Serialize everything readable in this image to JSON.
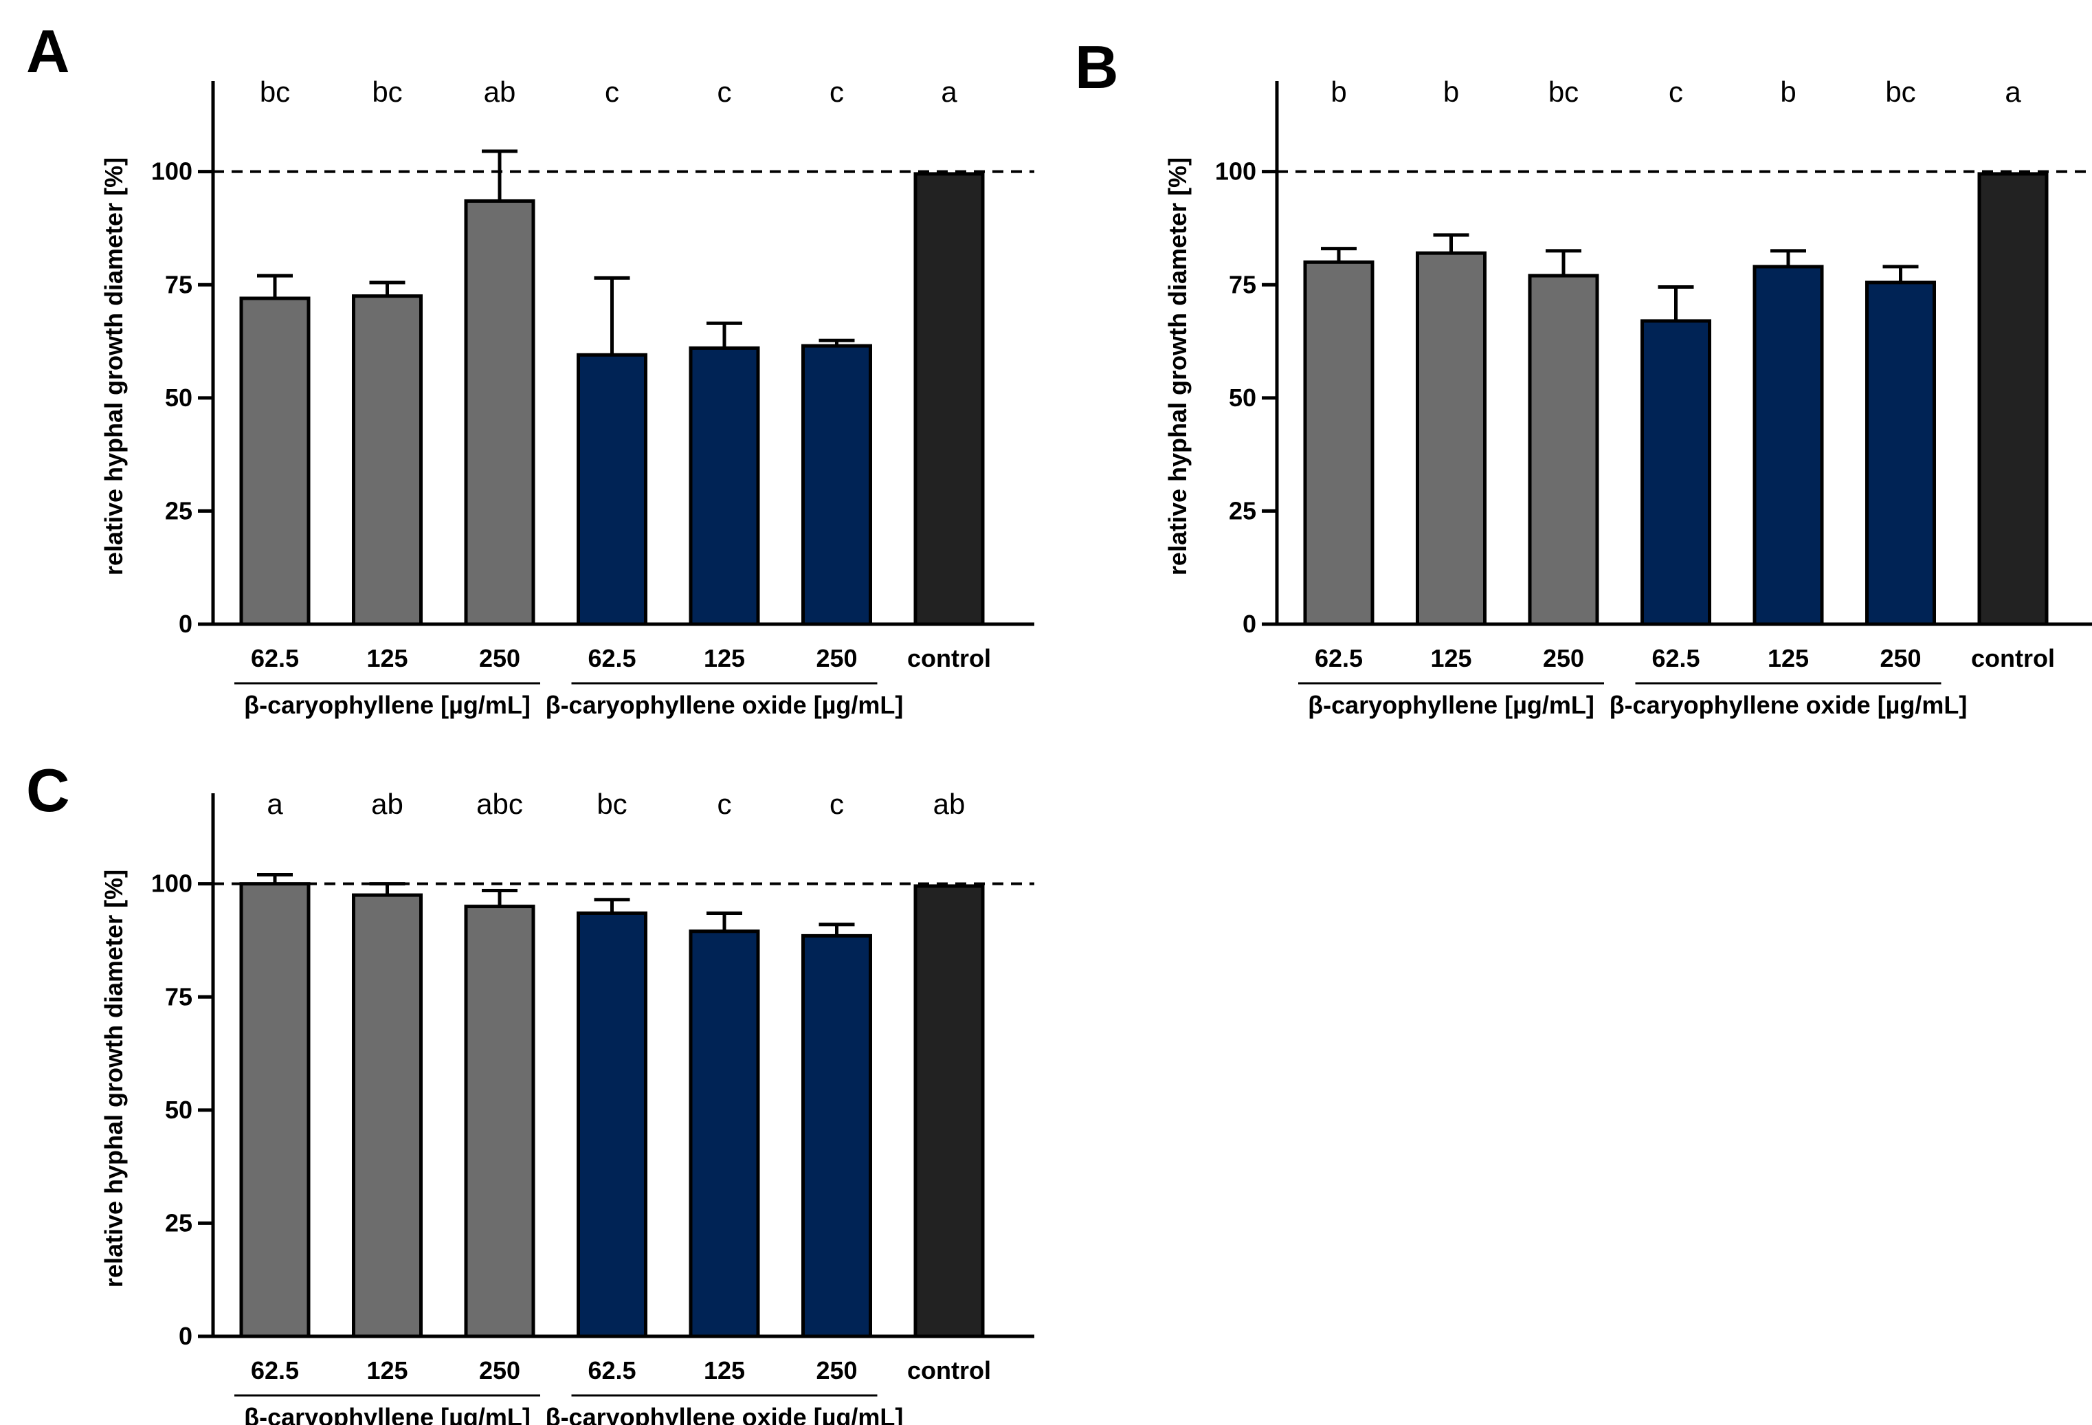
{
  "figure": {
    "group_labels": [
      "β-caryophyllene [µg/mL]",
      "β-caryophyllene oxide [µg/mL]"
    ],
    "colors": {
      "caryophyllene": "#6d6d6d",
      "caryophyllene_oxide": "#002355",
      "control": "#222222",
      "axis": "#000000"
    }
  },
  "chart_data": [
    {
      "panel": "A",
      "type": "bar",
      "title": "",
      "xlabel": "",
      "ylabel": "relative hyphal growth diameter [%]",
      "ylim": [
        0,
        120
      ],
      "yticks": [
        "0",
        "25",
        "50",
        "75",
        "100"
      ],
      "reference_line": 100,
      "categories": [
        "62.5",
        "125",
        "250",
        "62.5",
        "125",
        "250",
        "control"
      ],
      "groups": [
        "caryophyllene",
        "caryophyllene",
        "caryophyllene",
        "caryophyllene_oxide",
        "caryophyllene_oxide",
        "caryophyllene_oxide",
        "control"
      ],
      "values": [
        72,
        72.5,
        93.5,
        59.5,
        61,
        61.5,
        99.5
      ],
      "errors": [
        5,
        3,
        11,
        17,
        5.5,
        1.2,
        0
      ],
      "significance": [
        "bc",
        "bc",
        "ab",
        "c",
        "c",
        "c",
        "a"
      ]
    },
    {
      "panel": "B",
      "type": "bar",
      "title": "",
      "xlabel": "",
      "ylabel": "relative hyphal growth diameter [%]",
      "ylim": [
        0,
        120
      ],
      "yticks": [
        "0",
        "25",
        "50",
        "75",
        "100"
      ],
      "reference_line": 100,
      "categories": [
        "62.5",
        "125",
        "250",
        "62.5",
        "125",
        "250",
        "control"
      ],
      "groups": [
        "caryophyllene",
        "caryophyllene",
        "caryophyllene",
        "caryophyllene_oxide",
        "caryophyllene_oxide",
        "caryophyllene_oxide",
        "control"
      ],
      "values": [
        80,
        82,
        77,
        67,
        79,
        75.5,
        99.5
      ],
      "errors": [
        3,
        4,
        5.5,
        7.5,
        3.5,
        3.5,
        0
      ],
      "significance": [
        "b",
        "b",
        "bc",
        "c",
        "b",
        "bc",
        "a"
      ]
    },
    {
      "panel": "C",
      "type": "bar",
      "title": "",
      "xlabel": "",
      "ylabel": "relative hyphal growth diameter [%]",
      "ylim": [
        0,
        120
      ],
      "yticks": [
        "0",
        "25",
        "50",
        "75",
        "100"
      ],
      "reference_line": 100,
      "categories": [
        "62.5",
        "125",
        "250",
        "62.5",
        "125",
        "250",
        "control"
      ],
      "groups": [
        "caryophyllene",
        "caryophyllene",
        "caryophyllene",
        "caryophyllene_oxide",
        "caryophyllene_oxide",
        "caryophyllene_oxide",
        "control"
      ],
      "values": [
        100,
        97.5,
        95,
        93.5,
        89.5,
        88.5,
        99.5
      ],
      "errors": [
        2,
        2.5,
        3.5,
        3,
        4,
        2.5,
        0
      ],
      "significance": [
        "a",
        "ab",
        "abc",
        "bc",
        "c",
        "c",
        "ab"
      ]
    }
  ]
}
